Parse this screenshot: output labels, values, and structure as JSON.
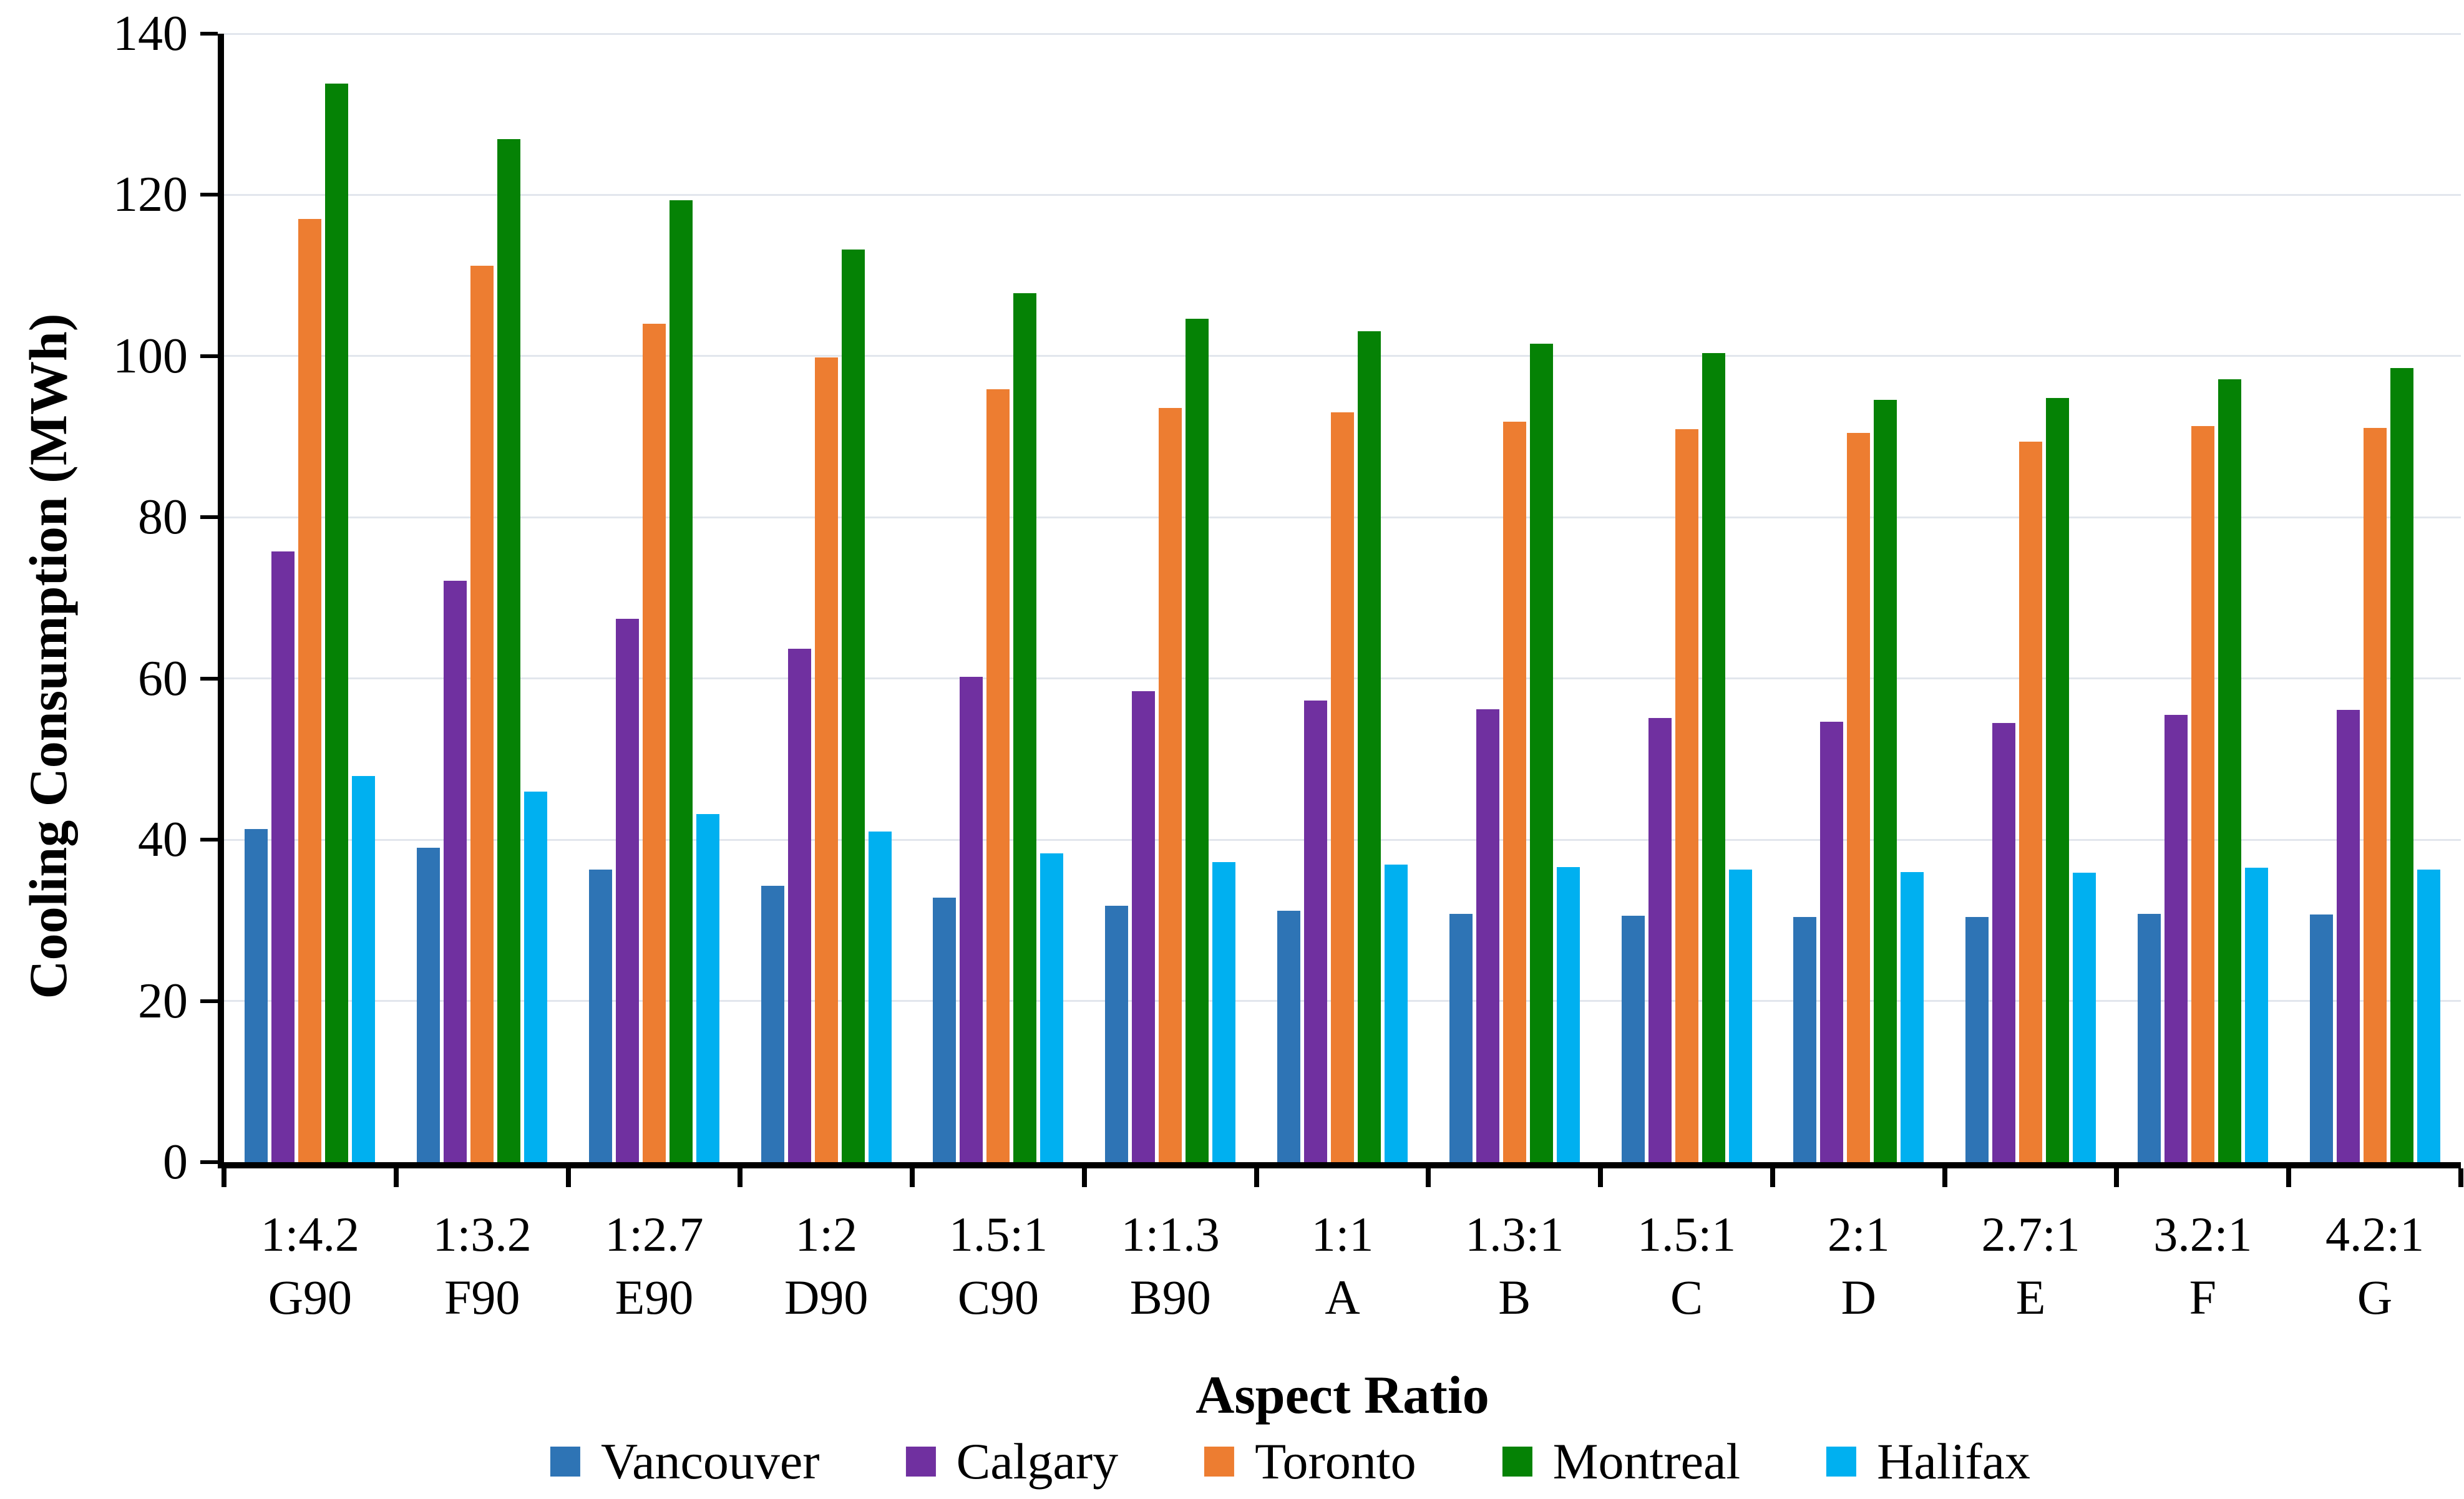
{
  "chart_data": {
    "type": "bar",
    "title": "",
    "xlabel": "Aspect Ratio",
    "ylabel": "Cooling Consumption (MWh)",
    "ylim": [
      0,
      140
    ],
    "y_ticks": [
      0,
      20,
      40,
      60,
      80,
      100,
      120,
      140
    ],
    "grid": "horizontal",
    "legend_position": "bottom",
    "gridline_color": "#E2E6ED",
    "axis_color": "#000000",
    "background_color": "#FFFFFF",
    "categories": [
      {
        "ratio": "1:4.2",
        "code": "G90"
      },
      {
        "ratio": "1:3.2",
        "code": "F90"
      },
      {
        "ratio": "1:2.7",
        "code": "E90"
      },
      {
        "ratio": "1:2",
        "code": "D90"
      },
      {
        "ratio": "1.5:1",
        "code": "C90"
      },
      {
        "ratio": "1:1.3",
        "code": "B90"
      },
      {
        "ratio": "1:1",
        "code": "A"
      },
      {
        "ratio": "1.3:1",
        "code": "B"
      },
      {
        "ratio": "1.5:1",
        "code": "C"
      },
      {
        "ratio": "2:1",
        "code": "D"
      },
      {
        "ratio": "2.7:1",
        "code": "E"
      },
      {
        "ratio": "3.2:1",
        "code": "F"
      },
      {
        "ratio": "4.2:1",
        "code": "G"
      }
    ],
    "series": [
      {
        "name": "Vancouver",
        "color": "#2E74B5",
        "values": [
          41.3,
          39.0,
          36.3,
          34.3,
          32.8,
          31.8,
          31.2,
          30.8,
          30.6,
          30.4,
          30.4,
          30.8,
          30.7
        ]
      },
      {
        "name": "Calgary",
        "color": "#7030A0",
        "values": [
          75.8,
          72.1,
          67.4,
          63.7,
          60.2,
          58.4,
          57.3,
          56.2,
          55.1,
          54.6,
          54.5,
          55.5,
          56.1
        ]
      },
      {
        "name": "Toronto",
        "color": "#ED7D31",
        "values": [
          117.0,
          111.2,
          104.0,
          99.8,
          95.9,
          93.6,
          93.0,
          91.9,
          90.9,
          90.5,
          89.4,
          91.3,
          91.1
        ]
      },
      {
        "name": "Montreal",
        "color": "#058205",
        "values": [
          133.8,
          126.9,
          119.3,
          113.2,
          107.8,
          104.6,
          103.1,
          101.5,
          100.4,
          94.6,
          94.8,
          97.1,
          98.5
        ]
      },
      {
        "name": "Halifax",
        "color": "#00B0F0",
        "values": [
          47.9,
          46.0,
          43.2,
          41.0,
          38.3,
          37.2,
          36.9,
          36.6,
          36.3,
          36.0,
          35.9,
          36.5,
          36.3
        ]
      }
    ]
  }
}
